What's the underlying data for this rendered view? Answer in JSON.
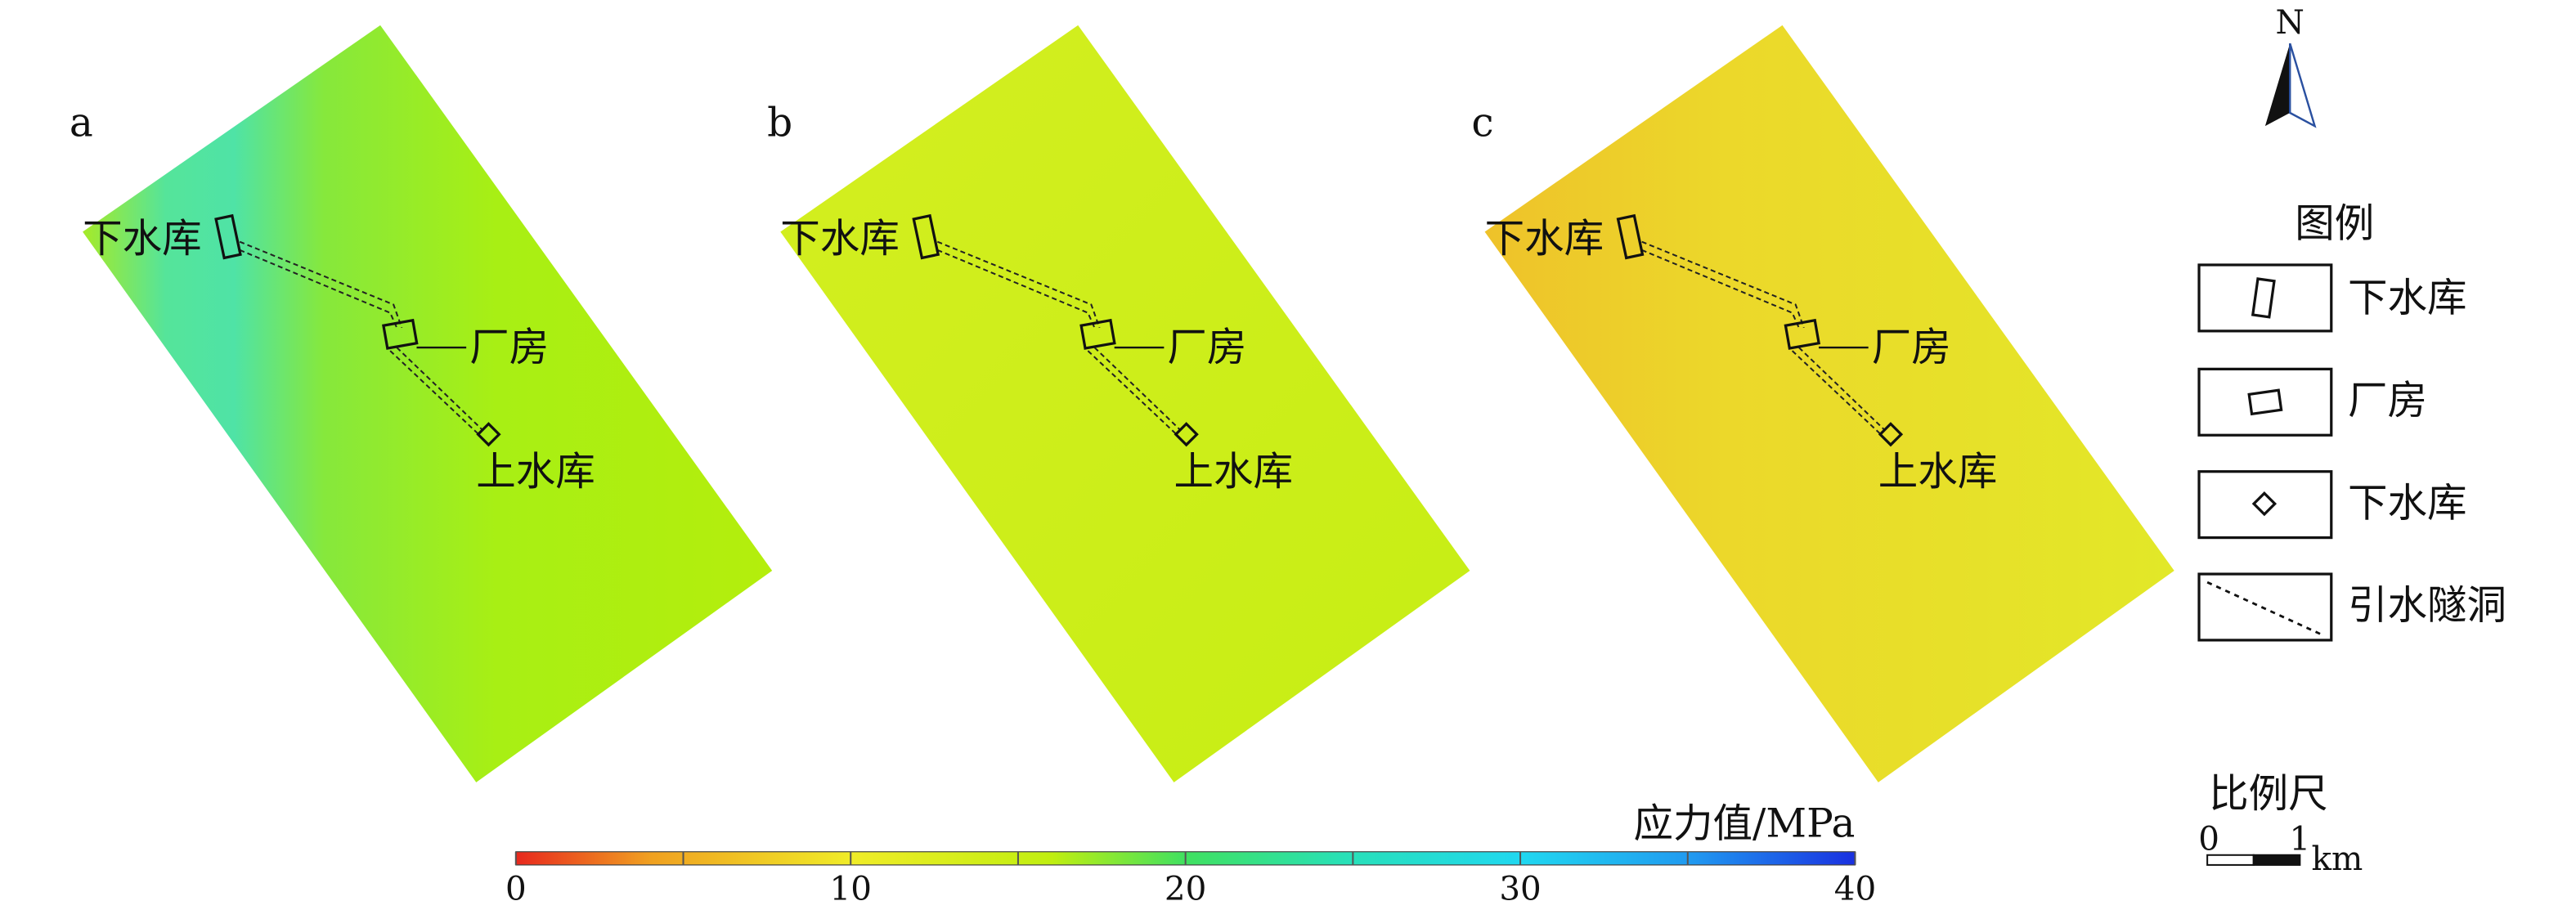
{
  "panels": [
    {
      "label": "a",
      "lower": "下水库",
      "plant": "厂房",
      "upper": "上水库"
    },
    {
      "label": "b",
      "lower": "下水库",
      "plant": "厂房",
      "upper": "上水库"
    },
    {
      "label": "c",
      "lower": "下水库",
      "plant": "厂房",
      "upper": "上水库"
    }
  ],
  "colorbar": {
    "title": "应力值/MPa",
    "range": [
      0,
      40
    ],
    "ticks": [
      0,
      10,
      20,
      30,
      40
    ]
  },
  "north": "N",
  "legend": {
    "title": "图例",
    "items": [
      "下水库",
      "厂房",
      "下水库",
      "引水隧洞"
    ]
  },
  "scale": {
    "title": "比例尺",
    "start": "0",
    "end": "1",
    "unit": "km"
  }
}
